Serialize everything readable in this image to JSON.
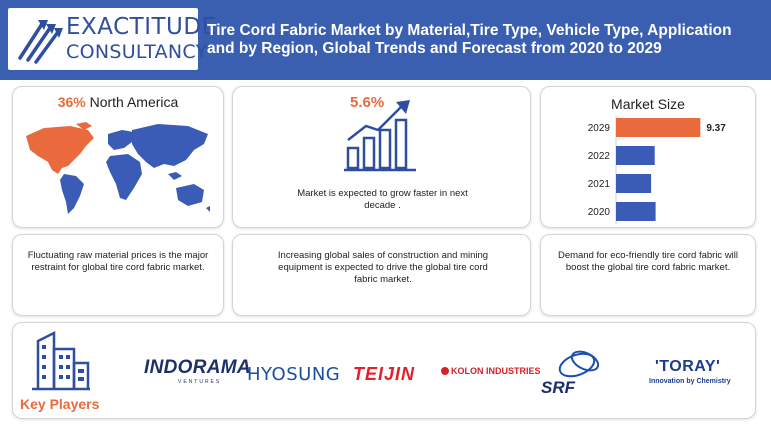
{
  "header": {
    "logo_line1": "EXACTITUDE",
    "logo_line2": "CONSULTANCY",
    "title": "Tire Cord Fabric Market by Material,Tire Type, Vehicle Type, Application and by Region, Global Trends and Forecast from 2020 to 2029"
  },
  "region": {
    "percent": "36%",
    "name": "North America"
  },
  "growth": {
    "cagr": "5.6%",
    "text": "Market is expected to grow faster in next decade ."
  },
  "market_size": {
    "title": "Market Size"
  },
  "notes": {
    "restraint": "Fluctuating raw material prices is the major restraint for global tire cord fabric market.",
    "driver": "Increasing global sales of construction and mining equipment is expected to drive the global tire cord fabric market.",
    "opportunity": "Demand for eco-friendly tire cord fabric will boost the global tire cord fabric market."
  },
  "key_players": {
    "label": "Key Players",
    "indorama": "INDORAMA",
    "indorama_sub": "VENTURES",
    "hyosung": "HYOSUNG",
    "teijin": "TEIJIN",
    "kolon": "KOLON INDUSTRIES",
    "srf": "SRF",
    "toray": "'TORAY'",
    "toray_sub": "Innovation by Chemistry"
  },
  "colors": {
    "header_blue": "#3a5fb0",
    "accent_orange": "#e96a3d",
    "bar_blue": "#3b5cb6"
  },
  "chart_data": {
    "type": "bar",
    "orientation": "horizontal",
    "title": "Market Size",
    "categories": [
      "2029",
      "2022",
      "2021",
      "2020"
    ],
    "values": [
      9.37,
      4.3,
      3.9,
      4.4
    ],
    "data_labels": [
      "9.37",
      "",
      "",
      ""
    ],
    "bar_colors": [
      "#e96a3d",
      "#3b5cb6",
      "#3b5cb6",
      "#3b5cb6"
    ],
    "xlim": [
      0,
      10
    ],
    "grid": false,
    "legend": false
  }
}
